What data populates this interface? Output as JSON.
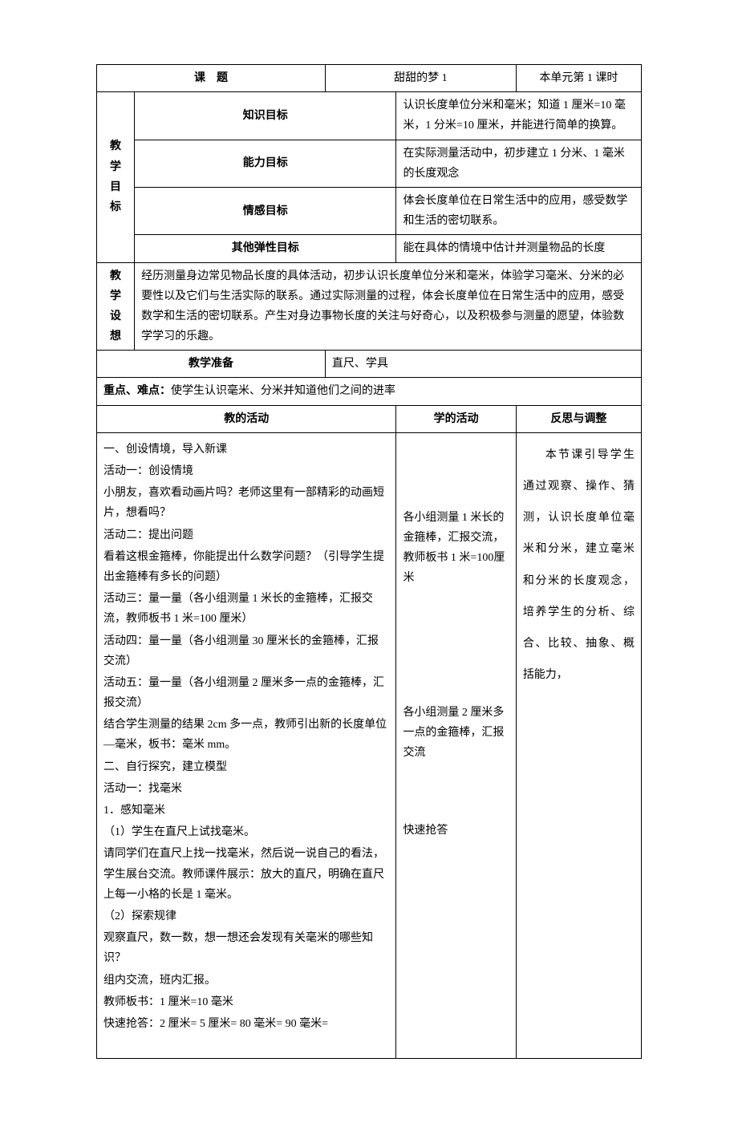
{
  "header": {
    "topic_label": "课　题",
    "topic_value": "甜甜的梦 1",
    "lesson_info": "本单元第 1 课时"
  },
  "goals": {
    "main_label": "教学目标",
    "knowledge_label": "知识目标",
    "knowledge_value": "认识长度单位分米和毫米；知道 1 厘米=10 毫米，1 分米=10 厘米，并能进行简单的换算。",
    "ability_label": "能力目标",
    "ability_value": "在实际测量活动中，初步建立 1 分米、1 毫米的长度观念",
    "emotion_label": "情感目标",
    "emotion_value": "体会长度单位在日常生活中的应用，感受数学和生活的密切联系。",
    "other_label": "其他弹性目标",
    "other_value": "能在具体的情境中估计并测量物品的长度"
  },
  "design": {
    "label": "教学设想",
    "value": "经历测量身边常见物品长度的具体活动，初步认识长度单位分米和毫米，体验学习毫米、分米的必要性以及它们与生活实际的联系。通过实际测量的过程，体会长度单位在日常生活中的应用，感受数学和生活的密切联系。产生对身边事物长度的关注与好奇心，以及积极参与测量的愿望，体验数学学习的乐趣。"
  },
  "prep": {
    "label": "教学准备",
    "value": "直尺、学具"
  },
  "keypoints": {
    "text": "重点、难点：使学生认识毫米、分米并知道他们之间的进率"
  },
  "columns": {
    "teach": "教的活动",
    "learn": "学的活动",
    "reflect": "反思与调整"
  },
  "teach_content": {
    "lines": [
      "一、创设情境，导入新课",
      "活动一：创设情境",
      "小朋友，喜欢看动画片吗？老师这里有一部精彩的动画短片，想看吗？",
      "活动二：提出问题",
      "看着这根金箍棒，你能提出什么数学问题？（引导学生提出金箍棒有多长的问题）",
      "活动三：量一量（各小组测量 1 米长的金箍棒，汇报交流，教师板书 1 米=100 厘米）",
      "活动四：量一量（各小组测量 30 厘米长的金箍棒，汇报交流）",
      "活动五：量一量（各小组测量 2 厘米多一点的金箍棒，汇报交流）",
      "结合学生测量的结果 2cm 多一点，教师引出新的长度单位—毫米，板书：毫米 mm。",
      "二、自行探究，建立模型",
      "活动一：找毫米",
      "1．感知毫米",
      "（1）学生在直尺上试找毫米。",
      "请同学们在直尺上找一找毫米，然后说一说自己的看法，学生展台交流。教师课件展示：放大的直尺，明确在直尺上每一小格的长是 1 毫米。",
      "（2）探索规律",
      "观察直尺，数一数，想一想还会发现有关毫米的哪些知识？",
      "组内交流，班内汇报。",
      "教师板书：1 厘米=10 毫米",
      "快速抢答：2 厘米= 5 厘米= 80 毫米= 90 毫米="
    ]
  },
  "learn_content": {
    "block1": "各小组测量 1 米长的金箍棒，汇报交流，教师板书 1 米=100厘米",
    "block2": "各小组测量 2 厘米多一点的金箍棒，汇报交流",
    "block3": "快速抢答"
  },
  "reflect_content": {
    "text": "本节课引导学生通过观察、操作、猜测，认识长度单位毫米和分米，建立毫米和分米的长度观念，培养学生的分析、综合、比较、抽象、概括能力，"
  }
}
